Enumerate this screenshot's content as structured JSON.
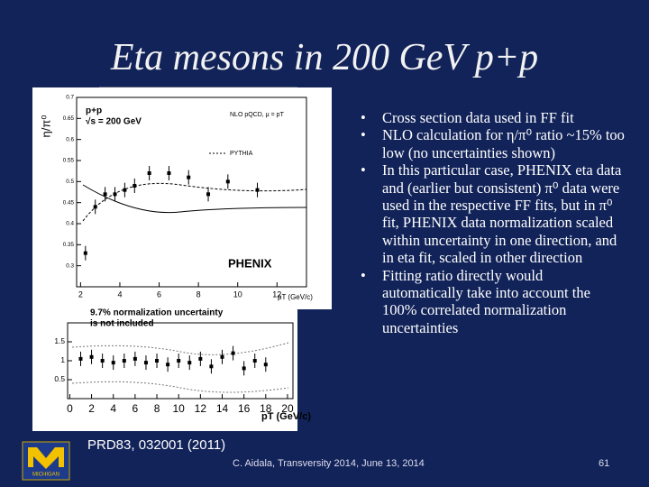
{
  "title": "Eta mesons in 200 GeV p+p",
  "bullets": [
    "Cross section data used in FF fit",
    "NLO calculation for η/π⁰ ratio ~15% too low (no uncertainties shown)",
    "In this particular case, PHENIX eta data and (earlier but consistent) π⁰ data were used in the respective FF fits, but in π⁰ fit, PHENIX data normalization scaled within uncertainty in one direction, and in eta fit, scaled in other direction",
    "Fitting ratio directly would automatically take into account the 100% correlated normalization uncertainties"
  ],
  "reference": "PRD83, 032001 (2011)",
  "footer": {
    "author": "C. Aidala, Transversity 2014, June 13, 2014",
    "page": "61"
  },
  "logo": {
    "text": "MICHIGAN"
  },
  "figure_top": {
    "ylabel": "η/π⁰",
    "xlabel": "pT (GeV/c)",
    "system": "p+p",
    "energy": "√s = 200 GeV",
    "legend": [
      "NLO pQCD, μ = pT",
      "PYTHIA"
    ],
    "experiment": "PHENIX",
    "xlim": [
      1.8,
      13.5
    ],
    "ylim": [
      0.25,
      0.7
    ],
    "xticks": [
      2,
      4,
      6,
      8,
      10,
      12
    ],
    "yticks": [
      0.3,
      0.35,
      0.4,
      0.45,
      0.5,
      0.55,
      0.6,
      0.65,
      0.7
    ],
    "x": [
      2.25,
      2.75,
      3.25,
      3.75,
      4.25,
      4.75,
      5.5,
      6.5,
      7.5,
      8.5,
      9.5,
      11
    ],
    "values": [
      0.33,
      0.44,
      0.47,
      0.47,
      0.48,
      0.49,
      0.52,
      0.52,
      0.51,
      0.47,
      0.5,
      0.48
    ]
  },
  "figure_bottom": {
    "note": [
      "9.7% normalization uncertainty",
      "is not included"
    ],
    "xlabel": "pT (GeV/c)",
    "xlim": [
      -0.2,
      20.5
    ],
    "ylim": [
      0,
      2
    ],
    "xticks": [
      0,
      2,
      4,
      6,
      8,
      10,
      12,
      14,
      16,
      18,
      20
    ],
    "yticks": [
      0.5,
      1,
      1.5
    ],
    "x": [
      1,
      2,
      3,
      4,
      5,
      6,
      7,
      8,
      9,
      10,
      11,
      12,
      13,
      14,
      15,
      16,
      17,
      18
    ],
    "values": [
      1.05,
      1.1,
      1.0,
      0.95,
      1.0,
      1.05,
      0.95,
      1.0,
      0.9,
      1.0,
      0.95,
      1.05,
      0.85,
      1.1,
      1.2,
      0.8,
      1.0,
      0.9
    ]
  }
}
